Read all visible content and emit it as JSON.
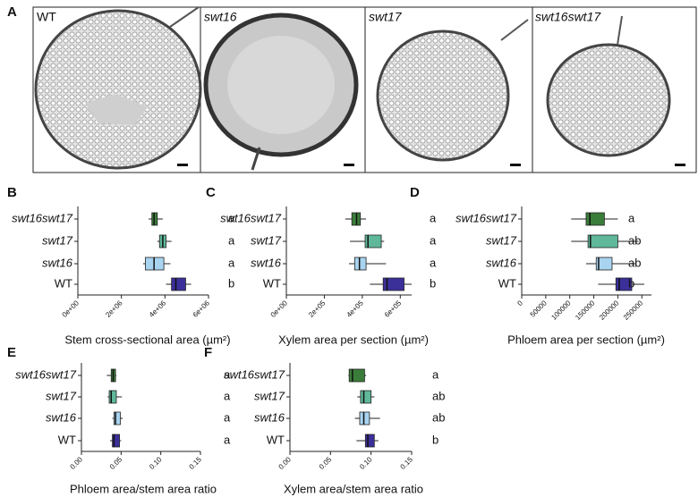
{
  "panel_a": {
    "letter": "A",
    "images": [
      {
        "label": "WT"
      },
      {
        "label": "swt16"
      },
      {
        "label": "swt17"
      },
      {
        "label": "swt16swt17"
      }
    ]
  },
  "chart_data": [
    {
      "type": "box",
      "panel": "B",
      "xlabel": "Stem cross-sectional area (µm²)",
      "categories": [
        "swt16swt17",
        "swt17",
        "swt16",
        "WT"
      ],
      "colors": [
        "#3a7d3a",
        "#5fb89a",
        "#a9d4f0",
        "#3b2f9a"
      ],
      "boxes": [
        {
          "whislo": 3250000,
          "q1": 3400000,
          "med": 3500000,
          "q3": 3650000,
          "whishi": 3900000
        },
        {
          "whislo": 3650000,
          "q1": 3750000,
          "med": 3900000,
          "q3": 4050000,
          "whishi": 4300000
        },
        {
          "whislo": 3000000,
          "q1": 3100000,
          "med": 3500000,
          "q3": 3950000,
          "whishi": 4250000
        },
        {
          "whislo": 4050000,
          "q1": 4300000,
          "med": 4500000,
          "q3": 4950000,
          "whishi": 5200000
        }
      ],
      "letters": [
        "a",
        "a",
        "a",
        "b"
      ],
      "xlim": [
        0,
        6000000
      ],
      "xticks": [
        {
          "value": 0,
          "label": "0e+00"
        },
        {
          "value": 2000000,
          "label": "2e+06"
        },
        {
          "value": 4000000,
          "label": "4e+06"
        },
        {
          "value": 6000000,
          "label": "6e+06"
        }
      ]
    },
    {
      "type": "box",
      "panel": "C",
      "xlabel": "Xylem area per section (µm²)",
      "categories": [
        "swt16swt17",
        "swt17",
        "swt16",
        "WT"
      ],
      "colors": [
        "#3a7d3a",
        "#5fb89a",
        "#a9d4f0",
        "#3b2f9a"
      ],
      "boxes": [
        {
          "whislo": 310000,
          "q1": 345000,
          "med": 370000,
          "q3": 390000,
          "whishi": 420000
        },
        {
          "whislo": 335000,
          "q1": 415000,
          "med": 430000,
          "q3": 500000,
          "whishi": 515000
        },
        {
          "whislo": 330000,
          "q1": 360000,
          "med": 385000,
          "q3": 420000,
          "whishi": 525000
        },
        {
          "whislo": 440000,
          "q1": 510000,
          "med": 530000,
          "q3": 620000,
          "whishi": 660000
        }
      ],
      "letters": [
        "a",
        "a",
        "a",
        "b"
      ],
      "xlim": [
        0,
        660000
      ],
      "xticks": [
        {
          "value": 0,
          "label": "0e+00"
        },
        {
          "value": 200000,
          "label": "2e+05"
        },
        {
          "value": 400000,
          "label": "4e+05"
        },
        {
          "value": 600000,
          "label": "6e+05"
        }
      ]
    },
    {
      "type": "box",
      "panel": "D",
      "xlabel": "Phloem area per section (µm²)",
      "categories": [
        "swt16swt17",
        "swt17",
        "swt16",
        "WT"
      ],
      "colors": [
        "#3a7d3a",
        "#5fb89a",
        "#a9d4f0",
        "#3b2f9a"
      ],
      "boxes": [
        {
          "whislo": 103000,
          "q1": 134000,
          "med": 142000,
          "q3": 172000,
          "whishi": 200000
        },
        {
          "whislo": 103000,
          "q1": 138000,
          "med": 143000,
          "q3": 200000,
          "whishi": 243000
        },
        {
          "whislo": 134000,
          "q1": 155000,
          "med": 160000,
          "q3": 188000,
          "whishi": 237000
        },
        {
          "whislo": 159000,
          "q1": 196000,
          "med": 203000,
          "q3": 229000,
          "whishi": 255000
        }
      ],
      "letters": [
        "a",
        "ab",
        "ab",
        "b"
      ],
      "xlim": [
        0,
        270000
      ],
      "xticks": [
        0,
        50000,
        100000,
        150000,
        200000,
        250000
      ]
    },
    {
      "type": "box",
      "panel": "E",
      "xlabel": "Phloem area/stem area ratio",
      "categories": [
        "swt16swt17",
        "swt17",
        "swt16",
        "WT"
      ],
      "colors": [
        "#3a7d3a",
        "#5fb89a",
        "#a9d4f0",
        "#3b2f9a"
      ],
      "boxes": [
        {
          "whislo": 0.032,
          "q1": 0.0375,
          "med": 0.04,
          "q3": 0.043,
          "whishi": 0.044
        },
        {
          "whislo": 0.033,
          "q1": 0.035,
          "med": 0.0375,
          "q3": 0.044,
          "whishi": 0.051
        },
        {
          "whislo": 0.039,
          "q1": 0.041,
          "med": 0.043,
          "q3": 0.049,
          "whishi": 0.052
        },
        {
          "whislo": 0.036,
          "q1": 0.039,
          "med": 0.041,
          "q3": 0.048,
          "whishi": 0.05
        }
      ],
      "letters": [
        "a",
        "a",
        "a",
        "a"
      ],
      "xlim": [
        0,
        0.15
      ],
      "xticks": [
        {
          "value": 0,
          "label": "0.00"
        },
        {
          "value": 0.05,
          "label": "0.05"
        },
        {
          "value": 0.1,
          "label": "0.10"
        },
        {
          "value": 0.15,
          "label": "0.15"
        }
      ]
    },
    {
      "type": "box",
      "panel": "F",
      "xlabel": "Xylem area/stem area ratio",
      "categories": [
        "swt16swt17",
        "swt17",
        "swt16",
        "WT"
      ],
      "colors": [
        "#3a7d3a",
        "#5fb89a",
        "#a9d4f0",
        "#3b2f9a"
      ],
      "boxes": [
        {
          "whislo": 0.072,
          "q1": 0.073,
          "med": 0.077,
          "q3": 0.092,
          "whishi": 0.094
        },
        {
          "whislo": 0.083,
          "q1": 0.087,
          "med": 0.091,
          "q3": 0.1,
          "whishi": 0.104
        },
        {
          "whislo": 0.08,
          "q1": 0.086,
          "med": 0.091,
          "q3": 0.098,
          "whishi": 0.111
        },
        {
          "whislo": 0.082,
          "q1": 0.093,
          "med": 0.096,
          "q3": 0.104,
          "whishi": 0.109
        }
      ],
      "letters": [
        "a",
        "ab",
        "ab",
        "b"
      ],
      "xlim": [
        0,
        0.15
      ],
      "xticks": [
        {
          "value": 0,
          "label": "0.00"
        },
        {
          "value": 0.05,
          "label": "0.05"
        },
        {
          "value": 0.1,
          "label": "0.10"
        },
        {
          "value": 0.15,
          "label": "0.15"
        }
      ]
    }
  ]
}
